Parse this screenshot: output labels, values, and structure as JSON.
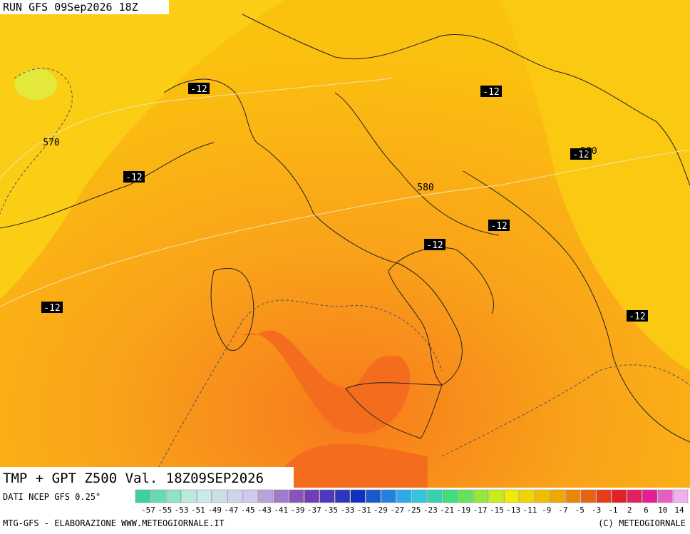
{
  "header": {
    "run": "RUN GFS 09Sep2026 18Z"
  },
  "map": {
    "labels": [
      "-12",
      "-12",
      "-12",
      "-12",
      "-12",
      "-12",
      "-12",
      "-12",
      "570",
      "580",
      "580"
    ]
  },
  "footer": {
    "title": "TMP + GPT Z500 Val. 18Z09SEP2026",
    "source": "DATI NCEP GFS 0.25°",
    "scale": [
      -57,
      -55,
      -53,
      -51,
      -49,
      -47,
      -45,
      -43,
      -41,
      -39,
      -37,
      -35,
      -33,
      -31,
      -29,
      -27,
      -25,
      -23,
      -21,
      -19,
      -17,
      -15,
      -13,
      -11,
      -9,
      -7,
      -5,
      -3,
      -1,
      2,
      6,
      10,
      14
    ],
    "credit_left": "MTG-GFS - ELABORAZIONE WWW.METEOGIORNALE.IT",
    "credit_right": "(C) METEOGIORNALE"
  }
}
